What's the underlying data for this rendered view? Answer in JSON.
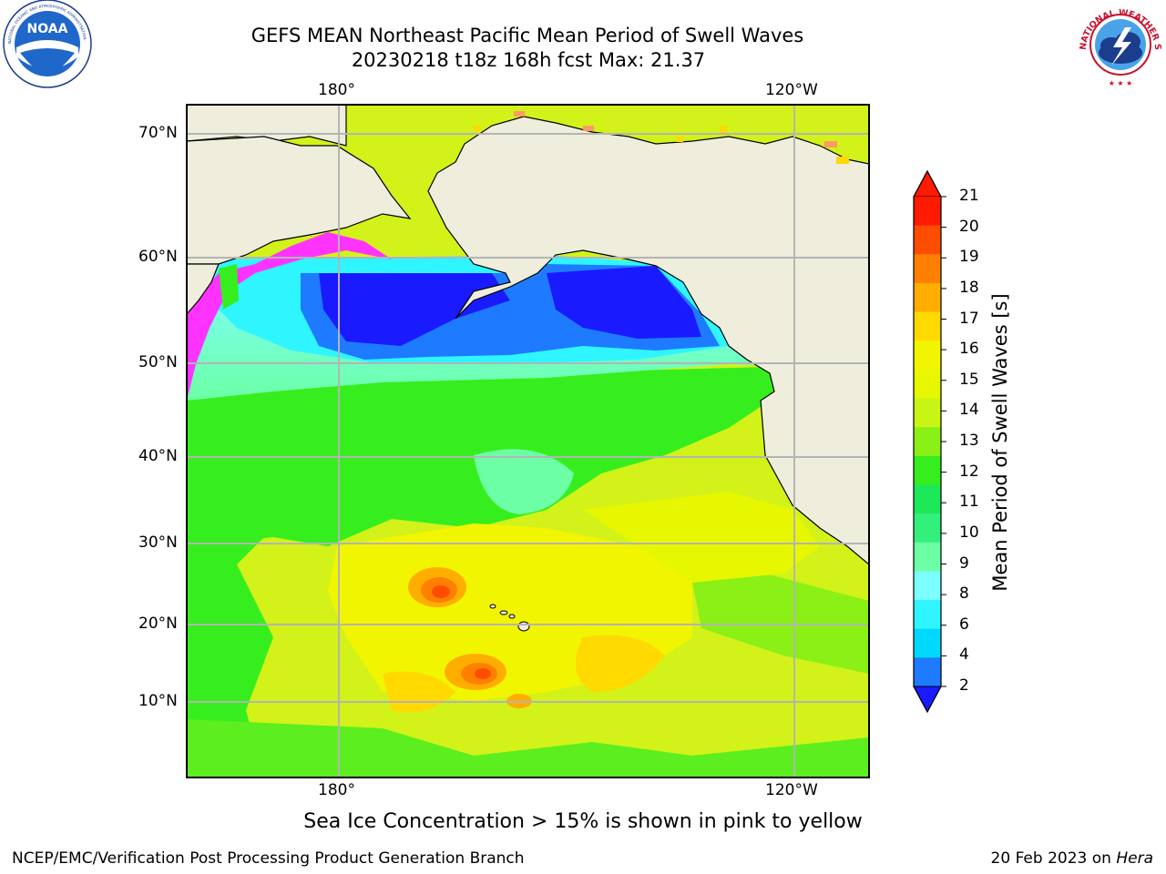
{
  "header": {
    "title_line1": "GEFS MEAN Northeast Pacific Mean Period of Swell Waves",
    "title_line2": "20230218 t18z 168h fcst   Max: 21.37"
  },
  "logos": {
    "left": {
      "text": "NOAA",
      "ring_text": "NATIONAL OCEANIC AND ATMOSPHERIC ADMINISTRATION · U.S. DEPARTMENT OF COMMERCE"
    },
    "right": {
      "ring_text": "NATIONAL WEATHER SERVICE"
    }
  },
  "map": {
    "lon_labels": [
      "180°",
      "120°W"
    ],
    "lat_labels": [
      "70°N",
      "60°N",
      "50°N",
      "40°N",
      "30°N",
      "20°N",
      "10°N"
    ],
    "land_color": "#efeddc",
    "ocean_palette": [
      "#1a1aff",
      "#1e7bff",
      "#00d9ff",
      "#2ef5ff",
      "#7dffff",
      "#6dffa5",
      "#1de85a",
      "#36ee1e",
      "#8af015",
      "#c8f514",
      "#f2f500",
      "#ffd900",
      "#ffae00",
      "#ff8000",
      "#ff4d00",
      "#ff2600"
    ],
    "ice_color": "#ff33ff"
  },
  "colorbar": {
    "ticks": [
      "21",
      "20",
      "19",
      "18",
      "17",
      "16",
      "15",
      "14",
      "13",
      "12",
      "11",
      "10",
      "9",
      "8",
      "6",
      "4",
      "2"
    ],
    "colors": [
      "#ff1a00",
      "#ff4d00",
      "#ff8000",
      "#ffae00",
      "#ffd900",
      "#f2f500",
      "#e6f700",
      "#c8f514",
      "#8af015",
      "#36ee1e",
      "#1de85a",
      "#33f07a",
      "#6dffa5",
      "#7dffff",
      "#2ef5ff",
      "#00d9ff",
      "#1e7bff"
    ],
    "min_arrow_color": "#1a1aff",
    "max_arrow_color": "#ff1a00",
    "label": "Mean Period of Swell Waves [s]"
  },
  "note": "Sea Ice Concentration > 15% is shown in pink to yellow",
  "footer": {
    "left": "NCEP/EMC/Verification Post Processing Product Generation Branch",
    "right_date": "20 Feb 2023 on ",
    "right_host": "Hera"
  }
}
